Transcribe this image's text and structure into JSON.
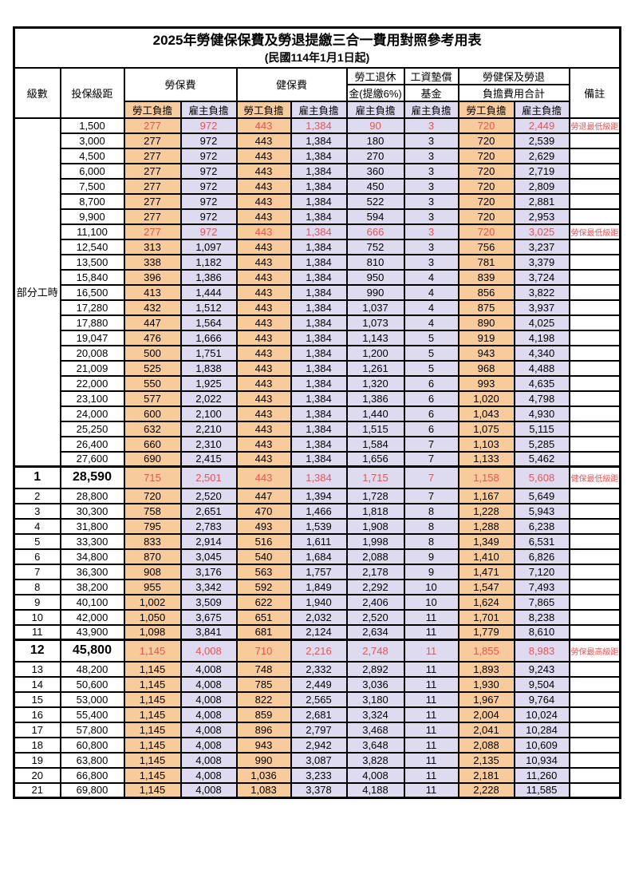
{
  "title": "2025年勞健保保費及勞退提繳三合一費用對照參考用表",
  "subtitle": "(民國114年1月1日起)",
  "columns": {
    "level": "級數",
    "bracket": "投保級距",
    "labor_insurance": "勞保費",
    "health_insurance": "健保費",
    "pension_line1": "勞工退休",
    "pension_line2": "金(提繳6%)",
    "wage_fund_line1": "工資墊償",
    "wage_fund_line2": "基金",
    "total_line1": "勞健保及勞退",
    "total_line2": "負擔費用合計",
    "remark": "備註",
    "employee_share": "勞工負擔",
    "employer_share": "雇主負擔"
  },
  "group_label": "部分工時",
  "group_span": 23,
  "colors": {
    "employee_bg": "#F8CB9C",
    "employer_bg": "#DEDAF0",
    "highlight_text": "#EE5252"
  },
  "rows": [
    {
      "level": "",
      "bracket": "1,500",
      "labor_emp": "277",
      "labor_er": "972",
      "health_emp": "443",
      "health_er": "1,384",
      "pension": "90",
      "fund": "3",
      "total_emp": "720",
      "total_er": "2,449",
      "remark": "勞退最低級距",
      "highlight": true,
      "emphasis": false
    },
    {
      "level": "",
      "bracket": "3,000",
      "labor_emp": "277",
      "labor_er": "972",
      "health_emp": "443",
      "health_er": "1,384",
      "pension": "180",
      "fund": "3",
      "total_emp": "720",
      "total_er": "2,539",
      "remark": "",
      "highlight": false,
      "emphasis": false
    },
    {
      "level": "",
      "bracket": "4,500",
      "labor_emp": "277",
      "labor_er": "972",
      "health_emp": "443",
      "health_er": "1,384",
      "pension": "270",
      "fund": "3",
      "total_emp": "720",
      "total_er": "2,629",
      "remark": "",
      "highlight": false,
      "emphasis": false
    },
    {
      "level": "",
      "bracket": "6,000",
      "labor_emp": "277",
      "labor_er": "972",
      "health_emp": "443",
      "health_er": "1,384",
      "pension": "360",
      "fund": "3",
      "total_emp": "720",
      "total_er": "2,719",
      "remark": "",
      "highlight": false,
      "emphasis": false
    },
    {
      "level": "",
      "bracket": "7,500",
      "labor_emp": "277",
      "labor_er": "972",
      "health_emp": "443",
      "health_er": "1,384",
      "pension": "450",
      "fund": "3",
      "total_emp": "720",
      "total_er": "2,809",
      "remark": "",
      "highlight": false,
      "emphasis": false
    },
    {
      "level": "",
      "bracket": "8,700",
      "labor_emp": "277",
      "labor_er": "972",
      "health_emp": "443",
      "health_er": "1,384",
      "pension": "522",
      "fund": "3",
      "total_emp": "720",
      "total_er": "2,881",
      "remark": "",
      "highlight": false,
      "emphasis": false
    },
    {
      "level": "",
      "bracket": "9,900",
      "labor_emp": "277",
      "labor_er": "972",
      "health_emp": "443",
      "health_er": "1,384",
      "pension": "594",
      "fund": "3",
      "total_emp": "720",
      "total_er": "2,953",
      "remark": "",
      "highlight": false,
      "emphasis": false
    },
    {
      "level": "",
      "bracket": "11,100",
      "labor_emp": "277",
      "labor_er": "972",
      "health_emp": "443",
      "health_er": "1,384",
      "pension": "666",
      "fund": "3",
      "total_emp": "720",
      "total_er": "3,025",
      "remark": "勞保最低級距",
      "highlight": true,
      "emphasis": false
    },
    {
      "level": "",
      "bracket": "12,540",
      "labor_emp": "313",
      "labor_er": "1,097",
      "health_emp": "443",
      "health_er": "1,384",
      "pension": "752",
      "fund": "3",
      "total_emp": "756",
      "total_er": "3,237",
      "remark": "",
      "highlight": false,
      "emphasis": false
    },
    {
      "level": "",
      "bracket": "13,500",
      "labor_emp": "338",
      "labor_er": "1,182",
      "health_emp": "443",
      "health_er": "1,384",
      "pension": "810",
      "fund": "3",
      "total_emp": "781",
      "total_er": "3,379",
      "remark": "",
      "highlight": false,
      "emphasis": false
    },
    {
      "level": "",
      "bracket": "15,840",
      "labor_emp": "396",
      "labor_er": "1,386",
      "health_emp": "443",
      "health_er": "1,384",
      "pension": "950",
      "fund": "4",
      "total_emp": "839",
      "total_er": "3,724",
      "remark": "",
      "highlight": false,
      "emphasis": false
    },
    {
      "level": "",
      "bracket": "16,500",
      "labor_emp": "413",
      "labor_er": "1,444",
      "health_emp": "443",
      "health_er": "1,384",
      "pension": "990",
      "fund": "4",
      "total_emp": "856",
      "total_er": "3,822",
      "remark": "",
      "highlight": false,
      "emphasis": false
    },
    {
      "level": "",
      "bracket": "17,280",
      "labor_emp": "432",
      "labor_er": "1,512",
      "health_emp": "443",
      "health_er": "1,384",
      "pension": "1,037",
      "fund": "4",
      "total_emp": "875",
      "total_er": "3,937",
      "remark": "",
      "highlight": false,
      "emphasis": false
    },
    {
      "level": "",
      "bracket": "17,880",
      "labor_emp": "447",
      "labor_er": "1,564",
      "health_emp": "443",
      "health_er": "1,384",
      "pension": "1,073",
      "fund": "4",
      "total_emp": "890",
      "total_er": "4,025",
      "remark": "",
      "highlight": false,
      "emphasis": false
    },
    {
      "level": "",
      "bracket": "19,047",
      "labor_emp": "476",
      "labor_er": "1,666",
      "health_emp": "443",
      "health_er": "1,384",
      "pension": "1,143",
      "fund": "5",
      "total_emp": "919",
      "total_er": "4,198",
      "remark": "",
      "highlight": false,
      "emphasis": false
    },
    {
      "level": "",
      "bracket": "20,008",
      "labor_emp": "500",
      "labor_er": "1,751",
      "health_emp": "443",
      "health_er": "1,384",
      "pension": "1,200",
      "fund": "5",
      "total_emp": "943",
      "total_er": "4,340",
      "remark": "",
      "highlight": false,
      "emphasis": false
    },
    {
      "level": "",
      "bracket": "21,009",
      "labor_emp": "525",
      "labor_er": "1,838",
      "health_emp": "443",
      "health_er": "1,384",
      "pension": "1,261",
      "fund": "5",
      "total_emp": "968",
      "total_er": "4,488",
      "remark": "",
      "highlight": false,
      "emphasis": false
    },
    {
      "level": "",
      "bracket": "22,000",
      "labor_emp": "550",
      "labor_er": "1,925",
      "health_emp": "443",
      "health_er": "1,384",
      "pension": "1,320",
      "fund": "6",
      "total_emp": "993",
      "total_er": "4,635",
      "remark": "",
      "highlight": false,
      "emphasis": false
    },
    {
      "level": "",
      "bracket": "23,100",
      "labor_emp": "577",
      "labor_er": "2,022",
      "health_emp": "443",
      "health_er": "1,384",
      "pension": "1,386",
      "fund": "6",
      "total_emp": "1,020",
      "total_er": "4,798",
      "remark": "",
      "highlight": false,
      "emphasis": false
    },
    {
      "level": "",
      "bracket": "24,000",
      "labor_emp": "600",
      "labor_er": "2,100",
      "health_emp": "443",
      "health_er": "1,384",
      "pension": "1,440",
      "fund": "6",
      "total_emp": "1,043",
      "total_er": "4,930",
      "remark": "",
      "highlight": false,
      "emphasis": false
    },
    {
      "level": "",
      "bracket": "25,250",
      "labor_emp": "632",
      "labor_er": "2,210",
      "health_emp": "443",
      "health_er": "1,384",
      "pension": "1,515",
      "fund": "6",
      "total_emp": "1,075",
      "total_er": "5,115",
      "remark": "",
      "highlight": false,
      "emphasis": false
    },
    {
      "level": "",
      "bracket": "26,400",
      "labor_emp": "660",
      "labor_er": "2,310",
      "health_emp": "443",
      "health_er": "1,384",
      "pension": "1,584",
      "fund": "7",
      "total_emp": "1,103",
      "total_er": "5,285",
      "remark": "",
      "highlight": false,
      "emphasis": false
    },
    {
      "level": "",
      "bracket": "27,600",
      "labor_emp": "690",
      "labor_er": "2,415",
      "health_emp": "443",
      "health_er": "1,384",
      "pension": "1,656",
      "fund": "7",
      "total_emp": "1,133",
      "total_er": "5,462",
      "remark": "",
      "highlight": false,
      "emphasis": false
    },
    {
      "level": "1",
      "bracket": "28,590",
      "labor_emp": "715",
      "labor_er": "2,501",
      "health_emp": "443",
      "health_er": "1,384",
      "pension": "1,715",
      "fund": "7",
      "total_emp": "1,158",
      "total_er": "5,608",
      "remark": "健保最低級距",
      "highlight": true,
      "emphasis": true
    },
    {
      "level": "2",
      "bracket": "28,800",
      "labor_emp": "720",
      "labor_er": "2,520",
      "health_emp": "447",
      "health_er": "1,394",
      "pension": "1,728",
      "fund": "7",
      "total_emp": "1,167",
      "total_er": "5,649",
      "remark": "",
      "highlight": false,
      "emphasis": false
    },
    {
      "level": "3",
      "bracket": "30,300",
      "labor_emp": "758",
      "labor_er": "2,651",
      "health_emp": "470",
      "health_er": "1,466",
      "pension": "1,818",
      "fund": "8",
      "total_emp": "1,228",
      "total_er": "5,943",
      "remark": "",
      "highlight": false,
      "emphasis": false
    },
    {
      "level": "4",
      "bracket": "31,800",
      "labor_emp": "795",
      "labor_er": "2,783",
      "health_emp": "493",
      "health_er": "1,539",
      "pension": "1,908",
      "fund": "8",
      "total_emp": "1,288",
      "total_er": "6,238",
      "remark": "",
      "highlight": false,
      "emphasis": false
    },
    {
      "level": "5",
      "bracket": "33,300",
      "labor_emp": "833",
      "labor_er": "2,914",
      "health_emp": "516",
      "health_er": "1,611",
      "pension": "1,998",
      "fund": "8",
      "total_emp": "1,349",
      "total_er": "6,531",
      "remark": "",
      "highlight": false,
      "emphasis": false
    },
    {
      "level": "6",
      "bracket": "34,800",
      "labor_emp": "870",
      "labor_er": "3,045",
      "health_emp": "540",
      "health_er": "1,684",
      "pension": "2,088",
      "fund": "9",
      "total_emp": "1,410",
      "total_er": "6,826",
      "remark": "",
      "highlight": false,
      "emphasis": false
    },
    {
      "level": "7",
      "bracket": "36,300",
      "labor_emp": "908",
      "labor_er": "3,176",
      "health_emp": "563",
      "health_er": "1,757",
      "pension": "2,178",
      "fund": "9",
      "total_emp": "1,471",
      "total_er": "7,120",
      "remark": "",
      "highlight": false,
      "emphasis": false
    },
    {
      "level": "8",
      "bracket": "38,200",
      "labor_emp": "955",
      "labor_er": "3,342",
      "health_emp": "592",
      "health_er": "1,849",
      "pension": "2,292",
      "fund": "10",
      "total_emp": "1,547",
      "total_er": "7,493",
      "remark": "",
      "highlight": false,
      "emphasis": false
    },
    {
      "level": "9",
      "bracket": "40,100",
      "labor_emp": "1,002",
      "labor_er": "3,509",
      "health_emp": "622",
      "health_er": "1,940",
      "pension": "2,406",
      "fund": "10",
      "total_emp": "1,624",
      "total_er": "7,865",
      "remark": "",
      "highlight": false,
      "emphasis": false
    },
    {
      "level": "10",
      "bracket": "42,000",
      "labor_emp": "1,050",
      "labor_er": "3,675",
      "health_emp": "651",
      "health_er": "2,032",
      "pension": "2,520",
      "fund": "11",
      "total_emp": "1,701",
      "total_er": "8,238",
      "remark": "",
      "highlight": false,
      "emphasis": false
    },
    {
      "level": "11",
      "bracket": "43,900",
      "labor_emp": "1,098",
      "labor_er": "3,841",
      "health_emp": "681",
      "health_er": "2,124",
      "pension": "2,634",
      "fund": "11",
      "total_emp": "1,779",
      "total_er": "8,610",
      "remark": "",
      "highlight": false,
      "emphasis": false
    },
    {
      "level": "12",
      "bracket": "45,800",
      "labor_emp": "1,145",
      "labor_er": "4,008",
      "health_emp": "710",
      "health_er": "2,216",
      "pension": "2,748",
      "fund": "11",
      "total_emp": "1,855",
      "total_er": "8,983",
      "remark": "勞保最高級距",
      "highlight": true,
      "emphasis": true
    },
    {
      "level": "13",
      "bracket": "48,200",
      "labor_emp": "1,145",
      "labor_er": "4,008",
      "health_emp": "748",
      "health_er": "2,332",
      "pension": "2,892",
      "fund": "11",
      "total_emp": "1,893",
      "total_er": "9,243",
      "remark": "",
      "highlight": false,
      "emphasis": false
    },
    {
      "level": "14",
      "bracket": "50,600",
      "labor_emp": "1,145",
      "labor_er": "4,008",
      "health_emp": "785",
      "health_er": "2,449",
      "pension": "3,036",
      "fund": "11",
      "total_emp": "1,930",
      "total_er": "9,504",
      "remark": "",
      "highlight": false,
      "emphasis": false
    },
    {
      "level": "15",
      "bracket": "53,000",
      "labor_emp": "1,145",
      "labor_er": "4,008",
      "health_emp": "822",
      "health_er": "2,565",
      "pension": "3,180",
      "fund": "11",
      "total_emp": "1,967",
      "total_er": "9,764",
      "remark": "",
      "highlight": false,
      "emphasis": false
    },
    {
      "level": "16",
      "bracket": "55,400",
      "labor_emp": "1,145",
      "labor_er": "4,008",
      "health_emp": "859",
      "health_er": "2,681",
      "pension": "3,324",
      "fund": "11",
      "total_emp": "2,004",
      "total_er": "10,024",
      "remark": "",
      "highlight": false,
      "emphasis": false
    },
    {
      "level": "17",
      "bracket": "57,800",
      "labor_emp": "1,145",
      "labor_er": "4,008",
      "health_emp": "896",
      "health_er": "2,797",
      "pension": "3,468",
      "fund": "11",
      "total_emp": "2,041",
      "total_er": "10,284",
      "remark": "",
      "highlight": false,
      "emphasis": false
    },
    {
      "level": "18",
      "bracket": "60,800",
      "labor_emp": "1,145",
      "labor_er": "4,008",
      "health_emp": "943",
      "health_er": "2,942",
      "pension": "3,648",
      "fund": "11",
      "total_emp": "2,088",
      "total_er": "10,609",
      "remark": "",
      "highlight": false,
      "emphasis": false
    },
    {
      "level": "19",
      "bracket": "63,800",
      "labor_emp": "1,145",
      "labor_er": "4,008",
      "health_emp": "990",
      "health_er": "3,087",
      "pension": "3,828",
      "fund": "11",
      "total_emp": "2,135",
      "total_er": "10,934",
      "remark": "",
      "highlight": false,
      "emphasis": false
    },
    {
      "level": "20",
      "bracket": "66,800",
      "labor_emp": "1,145",
      "labor_er": "4,008",
      "health_emp": "1,036",
      "health_er": "3,233",
      "pension": "4,008",
      "fund": "11",
      "total_emp": "2,181",
      "total_er": "11,260",
      "remark": "",
      "highlight": false,
      "emphasis": false
    },
    {
      "level": "21",
      "bracket": "69,800",
      "labor_emp": "1,145",
      "labor_er": "4,008",
      "health_emp": "1,083",
      "health_er": "3,378",
      "pension": "4,188",
      "fund": "11",
      "total_emp": "2,228",
      "total_er": "11,585",
      "remark": "",
      "highlight": false,
      "emphasis": false
    }
  ]
}
